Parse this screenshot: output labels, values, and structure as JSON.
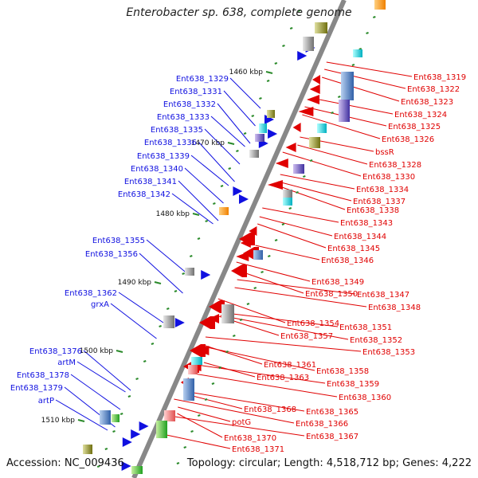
{
  "title": "Enterobacter sp. 638, complete genome",
  "accession": "Accession: NC_009436",
  "summary": "Topology: circular; Length: 4,518,712 bp; Genes: 4,222",
  "colors": {
    "forward_gene": "#1010e0",
    "reverse_gene": "#e00000",
    "scale_tick": "#2a8a2a",
    "backbone": "#888888"
  },
  "scale_labels": [
    "1460 kbp",
    "1470 kbp",
    "1480 kbp",
    "1490 kbp",
    "1500 kbp",
    "1510 kbp"
  ],
  "left_labels": [
    "Ent638_1329",
    "Ent638_1331",
    "Ent638_1332",
    "Ent638_1333",
    "Ent638_1335",
    "Ent638_1336",
    "Ent638_1339",
    "Ent638_1340",
    "Ent638_1341",
    "Ent638_1342",
    "Ent638_1355",
    "Ent638_1356",
    "Ent638_1362",
    "grxA",
    "Ent638_1376",
    "artM",
    "Ent638_1378",
    "Ent638_1379",
    "artP"
  ],
  "right_labels": [
    "Ent638_1319",
    "Ent638_1322",
    "Ent638_1323",
    "Ent638_1324",
    "Ent638_1325",
    "Ent638_1326",
    "bssR",
    "Ent638_1328",
    "Ent638_1330",
    "Ent638_1334",
    "Ent638_1337",
    "Ent638_1338",
    "Ent638_1343",
    "Ent638_1344",
    "Ent638_1345",
    "Ent638_1346",
    "Ent638_1349",
    "Ent638_1350",
    "Ent638_1347",
    "Ent638_1348",
    "Ent638_1354",
    "Ent638_1351",
    "Ent638_1357",
    "Ent638_1352",
    "Ent638_1353",
    "Ent638_1361",
    "Ent638_1358",
    "Ent638_1363",
    "Ent638_1359",
    "Ent638_1360",
    "Ent638_1368",
    "Ent638_1365",
    "Ent638_1366",
    "potG",
    "Ent638_1367",
    "Ent638_1370",
    "Ent638_1371"
  ]
}
